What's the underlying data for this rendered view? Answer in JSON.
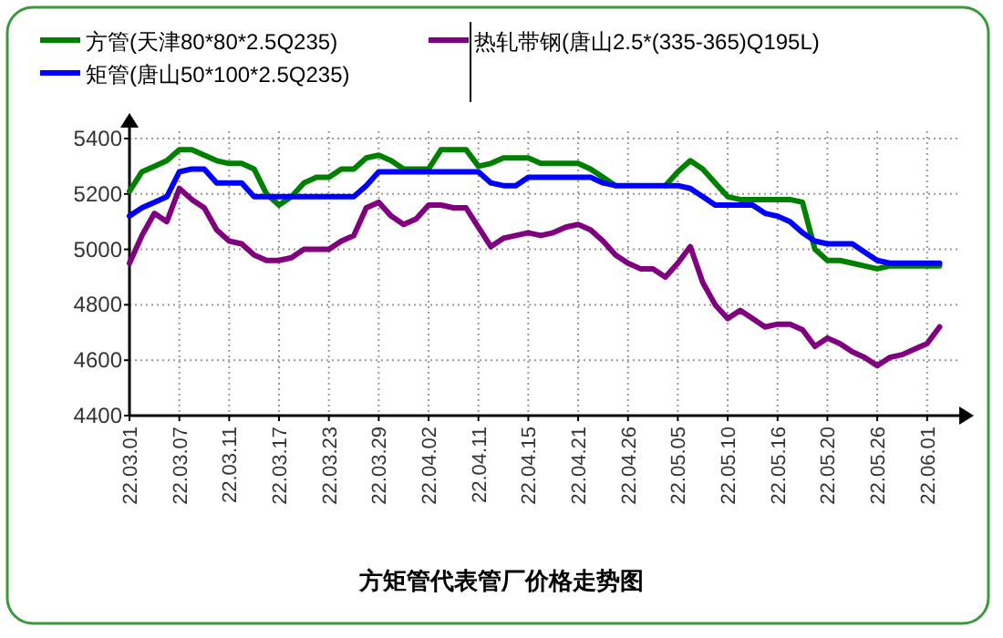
{
  "chart_data": {
    "type": "line",
    "title": "方矩管代表管厂价格走势图",
    "categories": [
      "22.03.01",
      null,
      null,
      null,
      "22.03.07",
      null,
      null,
      null,
      "22.03.11",
      null,
      null,
      null,
      "22.03.17",
      null,
      null,
      null,
      "22.03.23",
      null,
      null,
      null,
      "22.03.29",
      null,
      null,
      null,
      "22.04.02",
      null,
      null,
      null,
      "22.04.11",
      null,
      null,
      null,
      "22.04.15",
      null,
      null,
      null,
      "22.04.21",
      null,
      null,
      null,
      "22.04.26",
      null,
      null,
      null,
      "22.05.05",
      null,
      null,
      null,
      "22.05.10",
      null,
      null,
      null,
      "22.05.16",
      null,
      null,
      null,
      "22.05.20",
      null,
      null,
      null,
      "22.05.26",
      null,
      null,
      null,
      "22.06.01",
      null
    ],
    "series": [
      {
        "name": "方管(天津80*80*2.5Q235)",
        "color": "#008000",
        "values": [
          5210,
          5280,
          5300,
          5320,
          5360,
          5360,
          5340,
          5320,
          5310,
          5310,
          5290,
          5200,
          5160,
          5190,
          5240,
          5260,
          5260,
          5290,
          5290,
          5330,
          5340,
          5320,
          5290,
          5290,
          5290,
          5360,
          5360,
          5360,
          5300,
          5310,
          5330,
          5330,
          5330,
          5310,
          5310,
          5310,
          5310,
          5290,
          5260,
          5230,
          null,
          null,
          null,
          5230,
          5280,
          5320,
          5290,
          5240,
          5190,
          5180,
          5180,
          5180,
          5180,
          5180,
          5170,
          5000,
          4960,
          4960,
          4950,
          4940,
          4930,
          4940,
          4940,
          4940,
          4940,
          4940
        ]
      },
      {
        "name": "矩管(唐山50*100*2.5Q235)",
        "color": "#0000ff",
        "values": [
          5120,
          5150,
          5170,
          5190,
          5280,
          5290,
          5290,
          5240,
          5240,
          5240,
          5190,
          5190,
          5190,
          5190,
          5190,
          5190,
          5190,
          5190,
          5190,
          5230,
          5280,
          5280,
          5280,
          5280,
          5280,
          5280,
          5280,
          5280,
          5280,
          5240,
          5230,
          5230,
          5260,
          5260,
          5260,
          5260,
          5260,
          5260,
          5240,
          5230,
          5230,
          5230,
          5230,
          5230,
          5230,
          5220,
          5190,
          5160,
          5160,
          5160,
          5160,
          5130,
          5120,
          5100,
          5060,
          5030,
          5020,
          5020,
          5020,
          4990,
          4960,
          4950,
          4950,
          4950,
          4950,
          4950
        ]
      },
      {
        "name": "热轧带钢(唐山2.5*(335-365)Q195L)",
        "color": "#800080",
        "values": [
          4950,
          5050,
          5130,
          5100,
          5220,
          5180,
          5150,
          5070,
          5030,
          5020,
          4980,
          4960,
          4960,
          4970,
          5000,
          5000,
          5000,
          5030,
          5050,
          5150,
          5170,
          5120,
          5090,
          5110,
          5160,
          5160,
          5150,
          5150,
          5080,
          5010,
          5040,
          5050,
          5060,
          5050,
          5060,
          5080,
          5090,
          5070,
          5030,
          4980,
          4950,
          4930,
          4930,
          4900,
          4950,
          5010,
          4880,
          4800,
          4750,
          4780,
          4750,
          4720,
          4730,
          4730,
          4710,
          4650,
          4680,
          4660,
          4630,
          4610,
          4580,
          4610,
          4620,
          4640,
          4660,
          4720
        ]
      }
    ],
    "ylim": [
      4400,
      5400
    ],
    "yticks": [
      4400,
      4600,
      4800,
      5000,
      5200,
      5400
    ],
    "grid": true,
    "legend": "top"
  }
}
